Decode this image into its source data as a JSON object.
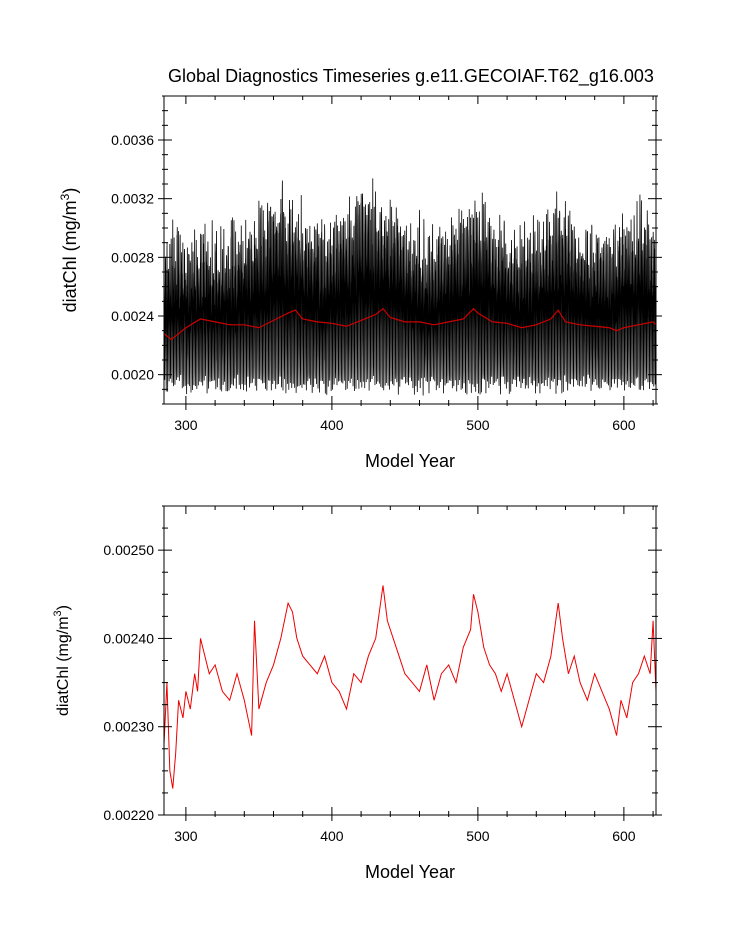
{
  "figure": {
    "title": "Global Diagnostics Timeseries g.e11.GECOIAF.T62_g16.003"
  },
  "chart_data": [
    {
      "type": "line",
      "xlabel": "Model Year",
      "ylabel_main": "diatChl (mg/m",
      "ylabel_sup": "3",
      "ylabel_close": ")",
      "xlim": [
        285,
        622
      ],
      "ylim": [
        0.0018,
        0.0039
      ],
      "xticks": [
        300,
        400,
        500,
        600
      ],
      "xtick_labels": [
        "300",
        "400",
        "500",
        "600"
      ],
      "yticks": [
        0.002,
        0.0024,
        0.0028,
        0.0032,
        0.0036
      ],
      "ytick_labels": [
        "0.0020",
        "0.0024",
        "0.0028",
        "0.0032",
        "0.0036"
      ],
      "grid": false,
      "legend": "none",
      "series": [
        {
          "kind": "monthly-envelope",
          "color": "#000000",
          "x_start": 285,
          "x_end": 622,
          "min_typical": 0.00198,
          "max_typical": 0.00295,
          "max_peaks": [
            {
              "x": 365,
              "y": 0.00342
            },
            {
              "x": 425,
              "y": 0.00345
            },
            {
              "x": 432,
              "y": 0.00338
            },
            {
              "x": 498,
              "y": 0.00335
            },
            {
              "x": 555,
              "y": 0.00333
            },
            {
              "x": 610,
              "y": 0.00328
            }
          ]
        },
        {
          "kind": "annual-mean",
          "color": "#cc0000",
          "x": [
            285,
            290,
            300,
            310,
            320,
            330,
            340,
            350,
            360,
            370,
            375,
            380,
            390,
            400,
            410,
            420,
            430,
            435,
            440,
            450,
            460,
            470,
            480,
            490,
            497,
            500,
            510,
            520,
            530,
            540,
            550,
            555,
            560,
            570,
            580,
            590,
            595,
            600,
            610,
            620,
            622
          ],
          "y": [
            0.00228,
            0.00224,
            0.00232,
            0.00238,
            0.00236,
            0.00234,
            0.00234,
            0.00232,
            0.00237,
            0.00242,
            0.00244,
            0.00238,
            0.00236,
            0.00235,
            0.00233,
            0.00237,
            0.00241,
            0.00245,
            0.00239,
            0.00236,
            0.00236,
            0.00234,
            0.00236,
            0.00238,
            0.00245,
            0.00242,
            0.00236,
            0.00235,
            0.00232,
            0.00234,
            0.00238,
            0.00244,
            0.00236,
            0.00234,
            0.00233,
            0.00232,
            0.0023,
            0.00232,
            0.00234,
            0.00236,
            0.00234
          ]
        }
      ]
    },
    {
      "type": "line",
      "xlabel": "Model Year",
      "ylabel_main": "diatChl (mg/m",
      "ylabel_sup": "3",
      "ylabel_close": ")",
      "xlim": [
        285,
        622
      ],
      "ylim": [
        0.0022,
        0.00255
      ],
      "xticks": [
        300,
        400,
        500,
        600
      ],
      "xtick_labels": [
        "300",
        "400",
        "500",
        "600"
      ],
      "yticks": [
        0.0022,
        0.0023,
        0.0024,
        0.0025
      ],
      "ytick_labels": [
        "0.00220",
        "0.00230",
        "0.00240",
        "0.00250"
      ],
      "grid": false,
      "legend": "none",
      "series": [
        {
          "kind": "annual-mean",
          "color": "#ee0000",
          "x": [
            285,
            287,
            289,
            291,
            293,
            295,
            298,
            300,
            303,
            306,
            308,
            310,
            313,
            316,
            320,
            325,
            330,
            335,
            340,
            345,
            347,
            350,
            355,
            360,
            365,
            370,
            373,
            376,
            380,
            385,
            390,
            395,
            400,
            405,
            410,
            415,
            420,
            425,
            430,
            435,
            438,
            442,
            446,
            450,
            455,
            460,
            465,
            470,
            475,
            480,
            485,
            490,
            495,
            497,
            500,
            504,
            508,
            512,
            516,
            520,
            525,
            530,
            535,
            540,
            545,
            550,
            555,
            558,
            562,
            566,
            570,
            575,
            580,
            585,
            590,
            595,
            598,
            602,
            606,
            610,
            614,
            618,
            620,
            622
          ],
          "y": [
            0.00228,
            0.00235,
            0.00225,
            0.00223,
            0.00227,
            0.00233,
            0.00231,
            0.00234,
            0.00232,
            0.00236,
            0.00234,
            0.0024,
            0.00238,
            0.00236,
            0.00237,
            0.00234,
            0.00233,
            0.00236,
            0.00233,
            0.00229,
            0.00242,
            0.00232,
            0.00235,
            0.00237,
            0.0024,
            0.00244,
            0.00243,
            0.0024,
            0.00238,
            0.00237,
            0.00236,
            0.00238,
            0.00235,
            0.00234,
            0.00232,
            0.00236,
            0.00235,
            0.00238,
            0.0024,
            0.00246,
            0.00242,
            0.0024,
            0.00238,
            0.00236,
            0.00235,
            0.00234,
            0.00237,
            0.00233,
            0.00236,
            0.00237,
            0.00235,
            0.00239,
            0.00241,
            0.00245,
            0.00243,
            0.00239,
            0.00237,
            0.00236,
            0.00234,
            0.00236,
            0.00233,
            0.0023,
            0.00233,
            0.00236,
            0.00235,
            0.00238,
            0.00244,
            0.0024,
            0.00236,
            0.00238,
            0.00235,
            0.00233,
            0.00236,
            0.00234,
            0.00232,
            0.00229,
            0.00233,
            0.00231,
            0.00235,
            0.00236,
            0.00238,
            0.00236,
            0.00242,
            0.00234
          ]
        }
      ]
    }
  ]
}
